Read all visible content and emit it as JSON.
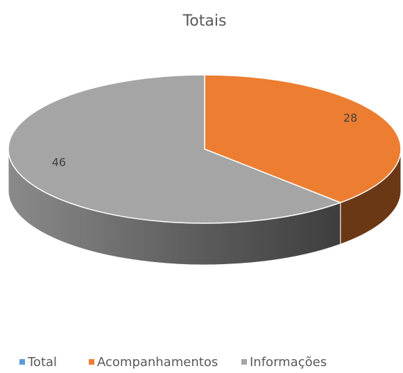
{
  "chart_data": {
    "type": "pie",
    "title": "Totais",
    "categories": [
      "Total",
      "Acompanhamentos",
      "Informações"
    ],
    "values": [
      0,
      28,
      46
    ],
    "colors": [
      "#5b9bd5",
      "#ed7d31",
      "#a5a5a5"
    ],
    "value_labels": [
      null,
      "28",
      "46"
    ],
    "legend": "bottom"
  }
}
